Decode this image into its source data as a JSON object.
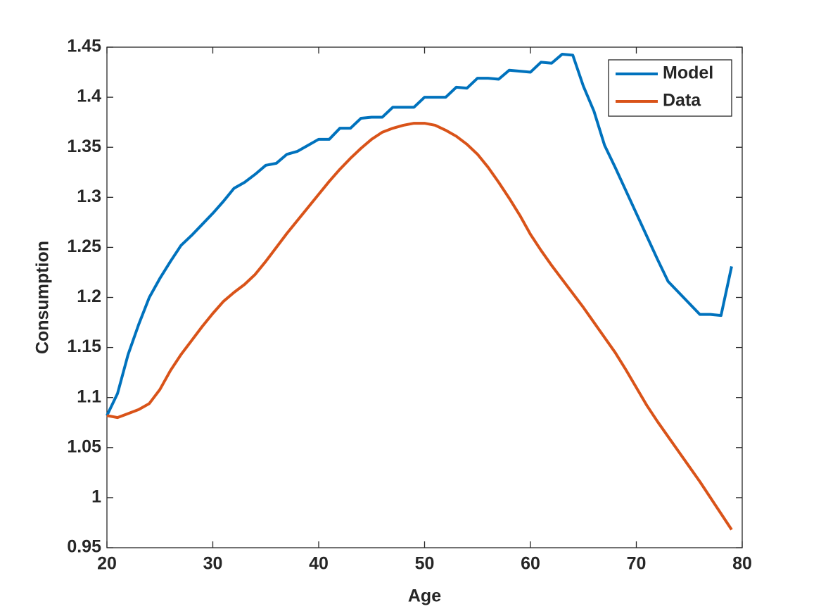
{
  "chart_data": {
    "type": "line",
    "xlabel": "Age",
    "ylabel": "Consumption",
    "x": [
      20,
      21,
      22,
      23,
      24,
      25,
      26,
      27,
      28,
      29,
      30,
      31,
      32,
      33,
      34,
      35,
      36,
      37,
      38,
      39,
      40,
      41,
      42,
      43,
      44,
      45,
      46,
      47,
      48,
      49,
      50,
      51,
      52,
      53,
      54,
      55,
      56,
      57,
      58,
      59,
      60,
      61,
      62,
      63,
      64,
      65,
      66,
      67,
      68,
      69,
      70,
      71,
      72,
      73,
      74,
      75,
      76,
      77,
      78,
      79
    ],
    "series": [
      {
        "name": "Model",
        "color": "#0072BD",
        "values": [
          1.082,
          1.104,
          1.143,
          1.173,
          1.2,
          1.219,
          1.236,
          1.252,
          1.262,
          1.273,
          1.284,
          1.296,
          1.309,
          1.315,
          1.323,
          1.332,
          1.334,
          1.343,
          1.346,
          1.352,
          1.358,
          1.358,
          1.369,
          1.369,
          1.379,
          1.38,
          1.38,
          1.39,
          1.39,
          1.39,
          1.4,
          1.4,
          1.4,
          1.41,
          1.409,
          1.419,
          1.419,
          1.418,
          1.427,
          1.426,
          1.425,
          1.435,
          1.434,
          1.443,
          1.442,
          1.411,
          1.386,
          1.352,
          1.33,
          1.307,
          1.284,
          1.261,
          1.238,
          1.216,
          1.205,
          1.194,
          1.183,
          1.183,
          1.182,
          1.231
        ]
      },
      {
        "name": "Data",
        "color": "#D95319",
        "values": [
          1.082,
          1.08,
          1.084,
          1.088,
          1.094,
          1.108,
          1.127,
          1.143,
          1.157,
          1.171,
          1.184,
          1.196,
          1.205,
          1.213,
          1.223,
          1.236,
          1.25,
          1.264,
          1.277,
          1.29,
          1.303,
          1.316,
          1.328,
          1.339,
          1.349,
          1.358,
          1.365,
          1.369,
          1.372,
          1.374,
          1.374,
          1.372,
          1.367,
          1.361,
          1.353,
          1.343,
          1.33,
          1.315,
          1.299,
          1.282,
          1.263,
          1.247,
          1.232,
          1.218,
          1.204,
          1.19,
          1.175,
          1.16,
          1.145,
          1.128,
          1.11,
          1.092,
          1.076,
          1.061,
          1.046,
          1.031,
          1.016,
          1.0,
          0.984,
          0.968
        ]
      }
    ],
    "xlim": [
      20,
      80
    ],
    "xticks": [
      20,
      30,
      40,
      50,
      60,
      70,
      80
    ],
    "ylim": [
      0.95,
      1.45
    ],
    "yticks": [
      0.95,
      1,
      1.05,
      1.1,
      1.15,
      1.2,
      1.25,
      1.3,
      1.35,
      1.4,
      1.45
    ],
    "grid": false,
    "legend": "northeast"
  }
}
